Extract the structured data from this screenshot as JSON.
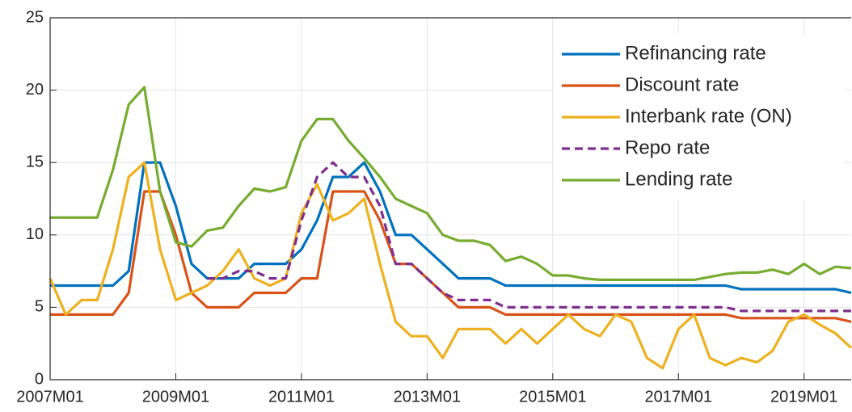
{
  "chart_data": {
    "type": "line",
    "x": [
      "2007M01",
      "2007M04",
      "2007M07",
      "2007M10",
      "2008M01",
      "2008M04",
      "2008M07",
      "2008M10",
      "2009M01",
      "2009M04",
      "2009M07",
      "2009M10",
      "2010M01",
      "2010M04",
      "2010M07",
      "2010M10",
      "2011M01",
      "2011M04",
      "2011M07",
      "2011M10",
      "2012M01",
      "2012M04",
      "2012M07",
      "2012M10",
      "2013M01",
      "2013M04",
      "2013M07",
      "2013M10",
      "2014M01",
      "2014M04",
      "2014M07",
      "2014M10",
      "2015M01",
      "2015M04",
      "2015M07",
      "2015M10",
      "2016M01",
      "2016M04",
      "2016M07",
      "2016M10",
      "2017M01",
      "2017M04",
      "2017M07",
      "2017M10",
      "2018M01",
      "2018M04",
      "2018M07",
      "2018M10",
      "2019M01",
      "2019M04",
      "2019M07",
      "2019M10"
    ],
    "series": [
      {
        "name": "Refinancing rate",
        "color": "#0072bd",
        "style": "solid",
        "values": [
          6.5,
          6.5,
          6.5,
          6.5,
          6.5,
          7.5,
          15,
          15,
          12,
          8,
          7,
          7,
          7,
          8,
          8,
          8,
          9,
          11,
          14,
          14,
          15,
          13,
          10,
          10,
          9,
          8,
          7,
          7,
          7,
          6.5,
          6.5,
          6.5,
          6.5,
          6.5,
          6.5,
          6.5,
          6.5,
          6.5,
          6.5,
          6.5,
          6.5,
          6.5,
          6.5,
          6.5,
          6.25,
          6.25,
          6.25,
          6.25,
          6.25,
          6.25,
          6.25,
          6
        ]
      },
      {
        "name": "Discount rate",
        "color": "#d95319",
        "style": "solid",
        "values": [
          4.5,
          4.5,
          4.5,
          4.5,
          4.5,
          6,
          13,
          13,
          10,
          6,
          5,
          5,
          5,
          6,
          6,
          6,
          7,
          7,
          13,
          13,
          13,
          11,
          8,
          8,
          7,
          6,
          5,
          5,
          5,
          4.5,
          4.5,
          4.5,
          4.5,
          4.5,
          4.5,
          4.5,
          4.5,
          4.5,
          4.5,
          4.5,
          4.5,
          4.5,
          4.5,
          4.5,
          4.25,
          4.25,
          4.25,
          4.25,
          4.25,
          4.25,
          4.25,
          4
        ]
      },
      {
        "name": "Interbank rate (ON)",
        "color": "#edb120",
        "style": "solid",
        "values": [
          7,
          4.5,
          5.5,
          5.5,
          9,
          14,
          15,
          9,
          5.5,
          6,
          6.5,
          7.5,
          9,
          7,
          6.5,
          7,
          11.5,
          13.5,
          11,
          11.5,
          12.5,
          8,
          4,
          3,
          3,
          1.5,
          3.5,
          3.5,
          3.5,
          2.5,
          3.5,
          2.5,
          3.5,
          4.5,
          3.5,
          3,
          4.5,
          4,
          1.5,
          0.8,
          3.5,
          4.5,
          1.5,
          1,
          1.5,
          1.2,
          2,
          4,
          4.5,
          3.8,
          3.2,
          2.2
        ]
      },
      {
        "name": "Repo rate",
        "color": "#7e2f8e",
        "style": "dashed",
        "values": [
          null,
          null,
          null,
          null,
          null,
          null,
          null,
          null,
          null,
          null,
          7,
          7,
          7.5,
          7.5,
          7,
          7,
          11,
          14,
          15,
          14,
          14,
          12,
          8,
          8,
          7,
          6,
          5.5,
          5.5,
          5.5,
          5,
          5,
          5,
          5,
          5,
          5,
          5,
          5,
          5,
          5,
          5,
          5,
          5,
          5,
          5,
          4.75,
          4.75,
          4.75,
          4.75,
          4.75,
          4.75,
          4.75,
          4.75
        ]
      },
      {
        "name": "Lending rate",
        "color": "#77ac30",
        "style": "solid",
        "values": [
          11.2,
          11.2,
          11.2,
          11.2,
          14.5,
          19,
          20.2,
          13,
          9.5,
          9.2,
          10.3,
          10.5,
          12,
          13.2,
          13,
          13.3,
          16.5,
          18,
          18,
          16.5,
          15.3,
          14,
          12.5,
          12,
          11.5,
          10,
          9.6,
          9.6,
          9.3,
          8.2,
          8.5,
          8,
          7.2,
          7.2,
          7,
          6.9,
          6.9,
          6.9,
          6.9,
          6.9,
          6.9,
          6.9,
          7.1,
          7.3,
          7.4,
          7.4,
          7.6,
          7.3,
          8,
          7.3,
          7.8,
          7.7
        ]
      }
    ],
    "xticks": [
      "2007M01",
      "2009M01",
      "2011M01",
      "2013M01",
      "2015M01",
      "2017M01",
      "2019M01"
    ],
    "ylim": [
      0,
      25
    ],
    "yticks": [
      0,
      5,
      10,
      15,
      20,
      25
    ],
    "grid": true,
    "legend": "top-right"
  }
}
